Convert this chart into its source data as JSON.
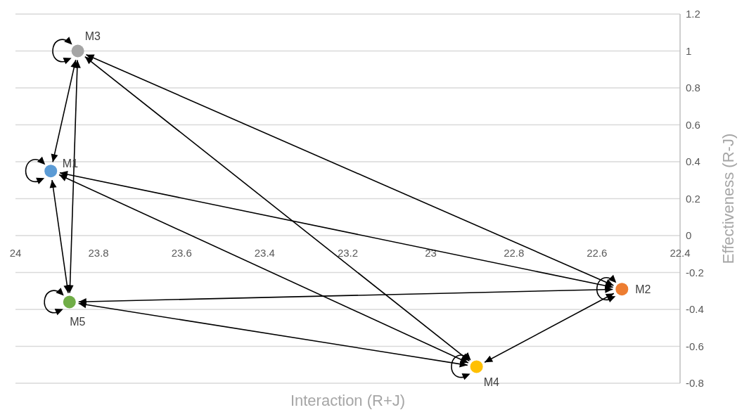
{
  "chart_data": {
    "type": "scatter",
    "xlabel": "Interaction (R+J)",
    "ylabel": "Effectiveness (R-J)",
    "xlim": [
      24,
      22.4
    ],
    "xticks": [
      24,
      23.8,
      23.6,
      23.4,
      23.2,
      23,
      22.8,
      22.6,
      22.4
    ],
    "ylim": [
      -0.8,
      1.2
    ],
    "yticks": [
      -0.8,
      -0.6,
      -0.4,
      -0.2,
      0,
      0.2,
      0.4,
      0.6,
      0.8,
      1,
      1.2
    ],
    "grid": "y",
    "legend": false,
    "marker": "circle",
    "series": [
      {
        "name": "M3",
        "color": "#a5a5a5",
        "x": [
          23.85
        ],
        "values": [
          1.0
        ]
      },
      {
        "name": "M1",
        "color": "#5b9bd5",
        "x": [
          23.915
        ],
        "values": [
          0.35
        ]
      },
      {
        "name": "M5",
        "color": "#70ad47",
        "x": [
          23.87
        ],
        "values": [
          -0.36
        ]
      },
      {
        "name": "M4",
        "color": "#ffc000",
        "x": [
          22.89
        ],
        "values": [
          -0.71
        ]
      },
      {
        "name": "M2",
        "color": "#ed7d31",
        "x": [
          22.54
        ],
        "values": [
          -0.29
        ]
      }
    ]
  }
}
